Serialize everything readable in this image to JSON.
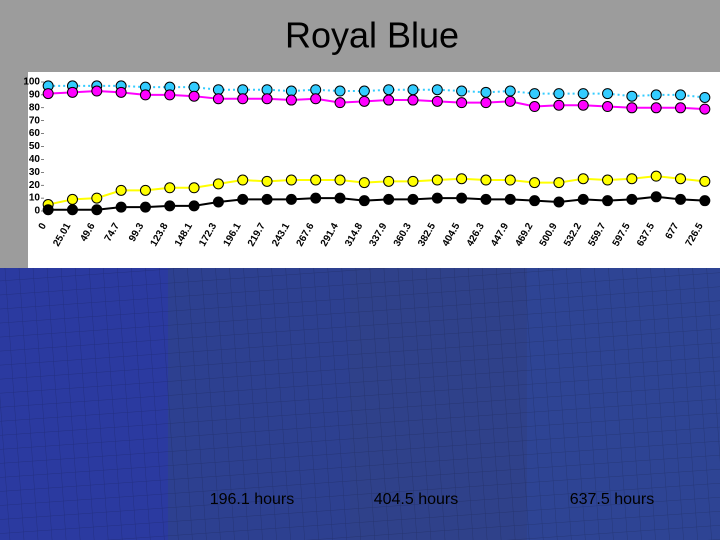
{
  "title": "Royal Blue",
  "captions": [
    "196.1 hours",
    "404.5 hours",
    "637.5 hours"
  ],
  "chart_data": {
    "type": "line",
    "categories": [
      "0",
      "25.01",
      "49.6",
      "74.7",
      "99.3",
      "123.8",
      "148.1",
      "172.3",
      "196.1",
      "219.7",
      "243.1",
      "267.6",
      "291.4",
      "314.8",
      "337.9",
      "360.3",
      "382.5",
      "404.5",
      "426.3",
      "447.9",
      "469.2",
      "500.9",
      "532.2",
      "559.7",
      "597.5",
      "637.5",
      "677",
      "726.5"
    ],
    "series": [
      {
        "color": "#33ccff",
        "line_style": "dotted",
        "values": [
          97,
          97,
          97,
          97,
          96,
          96,
          96,
          94,
          94,
          94,
          93,
          94,
          93,
          93,
          94,
          94,
          94,
          93,
          92,
          93,
          91,
          91,
          91,
          91,
          89,
          90,
          90,
          88
        ]
      },
      {
        "color": "#ff00ff",
        "line_style": "solid",
        "values": [
          91,
          92,
          93,
          92,
          90,
          90,
          89,
          87,
          87,
          87,
          86,
          87,
          84,
          85,
          86,
          86,
          85,
          84,
          84,
          85,
          81,
          82,
          82,
          81,
          80,
          80,
          80,
          79
        ]
      },
      {
        "color": "#ffff00",
        "line_style": "solid",
        "values": [
          5,
          9,
          10,
          16,
          16,
          18,
          18,
          21,
          24,
          23,
          24,
          24,
          24,
          22,
          23,
          23,
          24,
          25,
          24,
          24,
          22,
          22,
          25,
          24,
          25,
          27,
          25,
          23
        ]
      },
      {
        "color": "#000000",
        "line_style": "solid",
        "values": [
          1,
          1,
          1,
          3,
          3,
          4,
          4,
          7,
          9,
          9,
          9,
          10,
          10,
          8,
          9,
          9,
          10,
          10,
          9,
          9,
          8,
          7,
          9,
          8,
          9,
          11,
          9,
          8
        ]
      }
    ],
    "ylim": [
      0,
      100
    ],
    "yticks": [
      0,
      10,
      20,
      30,
      40,
      50,
      60,
      70,
      80,
      90,
      100
    ],
    "grid": false
  }
}
